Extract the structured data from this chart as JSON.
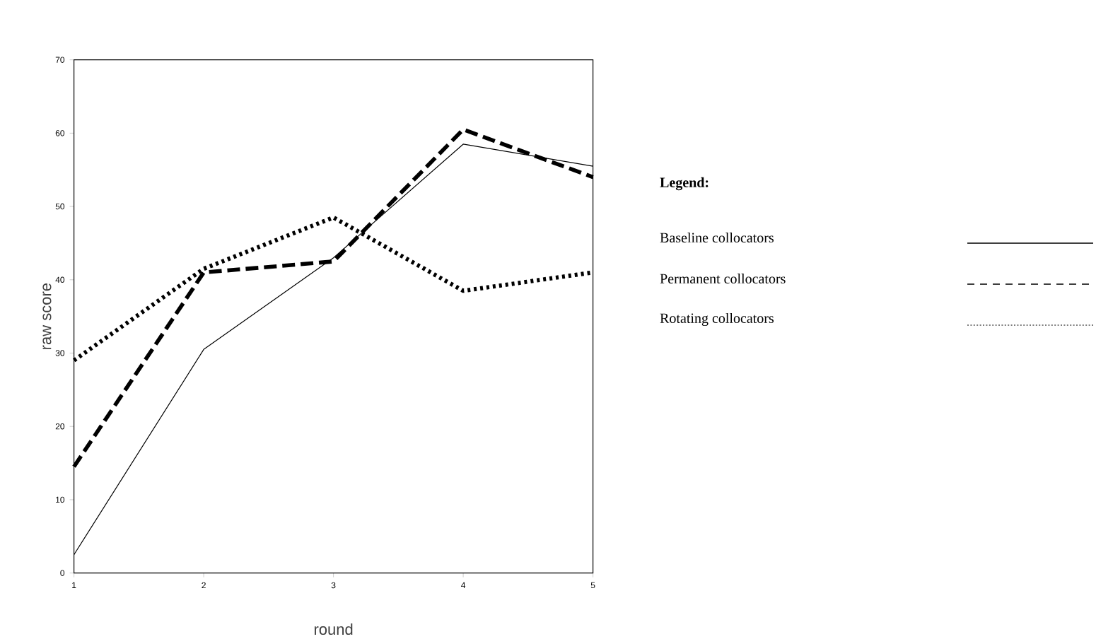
{
  "chart_data": {
    "type": "line",
    "xlabel": "round",
    "ylabel": "raw score",
    "legend_title": "Legend:",
    "legend": "right",
    "grid": false,
    "x": [
      1,
      2,
      3,
      4,
      5
    ],
    "xlim": [
      1,
      5
    ],
    "xticks": [
      1,
      2,
      3,
      4,
      5
    ],
    "ylim": [
      0,
      70
    ],
    "yticks": [
      0,
      10,
      20,
      30,
      40,
      50,
      60,
      70
    ],
    "series": [
      {
        "name": "Baseline collocators",
        "color": "#000000",
        "line_style": "solid",
        "values": [
          2.5,
          30.5,
          43,
          58.5,
          55.5
        ]
      },
      {
        "name": "Permanent collocators",
        "color": "#000000",
        "line_style": "dashed",
        "values": [
          14.5,
          41,
          42.5,
          60.5,
          54
        ]
      },
      {
        "name": "Rotating collocators",
        "color": "#000000",
        "line_style": "dotted",
        "values": [
          29,
          41.5,
          48.5,
          38.5,
          41
        ]
      }
    ]
  }
}
